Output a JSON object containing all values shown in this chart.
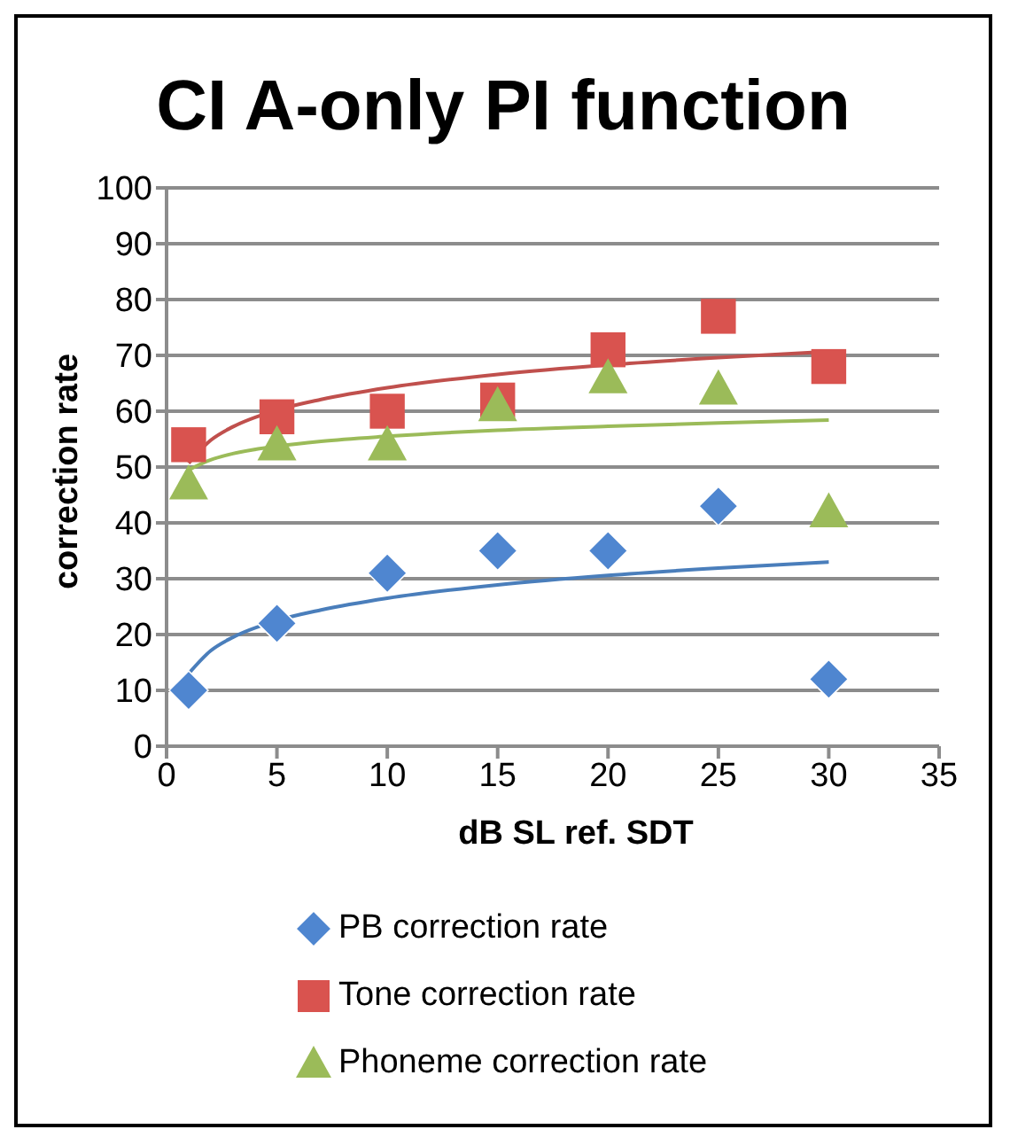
{
  "chart_data": {
    "type": "scatter",
    "title": "CI A-only PI function",
    "xlabel": "dB SL ref. SDT",
    "ylabel": "correction rate",
    "xlim": [
      0,
      35
    ],
    "xticks": [
      0,
      5,
      10,
      15,
      20,
      25,
      30,
      35
    ],
    "ylim": [
      0,
      100
    ],
    "yticks": [
      0,
      10,
      20,
      30,
      40,
      50,
      60,
      70,
      80,
      90,
      100
    ],
    "grid": "y",
    "legend": "bottom",
    "x": [
      1,
      5,
      10,
      15,
      20,
      25,
      30
    ],
    "series": [
      {
        "name": "PB correction rate",
        "color": "#4f86d0",
        "marker": "diamond",
        "values": [
          10,
          22,
          31,
          35,
          35,
          43,
          12
        ]
      },
      {
        "name": "Tone correction rate",
        "color": "#d9534f",
        "marker": "square",
        "values": [
          54,
          59,
          60,
          62,
          71,
          77,
          68
        ]
      },
      {
        "name": "Phoneme correction rate",
        "color": "#9bbb59",
        "marker": "triangle",
        "values": [
          47,
          54,
          54,
          61,
          66,
          64,
          42
        ]
      },
      {
        "type": "line",
        "color": "#4a7ebb",
        "x": [
          1,
          2,
          3,
          5,
          7,
          10,
          15,
          20,
          25,
          30
        ],
        "values": [
          13,
          17.1,
          19.5,
          22.5,
          24.4,
          26.5,
          28.9,
          30.6,
          31.9,
          33
        ]
      },
      {
        "type": "line",
        "color": "#c0504d",
        "x": [
          1,
          2,
          3,
          5,
          7,
          10,
          15,
          20,
          25,
          30
        ],
        "values": [
          50.7,
          54.8,
          57.2,
          60.2,
          62.1,
          64.2,
          66.6,
          68.3,
          69.6,
          70.7
        ]
      },
      {
        "type": "line",
        "color": "#9bbb59",
        "x": [
          1,
          2,
          3,
          5,
          7,
          10,
          15,
          20,
          25,
          30
        ],
        "values": [
          49.5,
          51.3,
          52.4,
          53.7,
          54.6,
          55.5,
          56.6,
          57.3,
          57.9,
          58.4
        ]
      }
    ]
  }
}
